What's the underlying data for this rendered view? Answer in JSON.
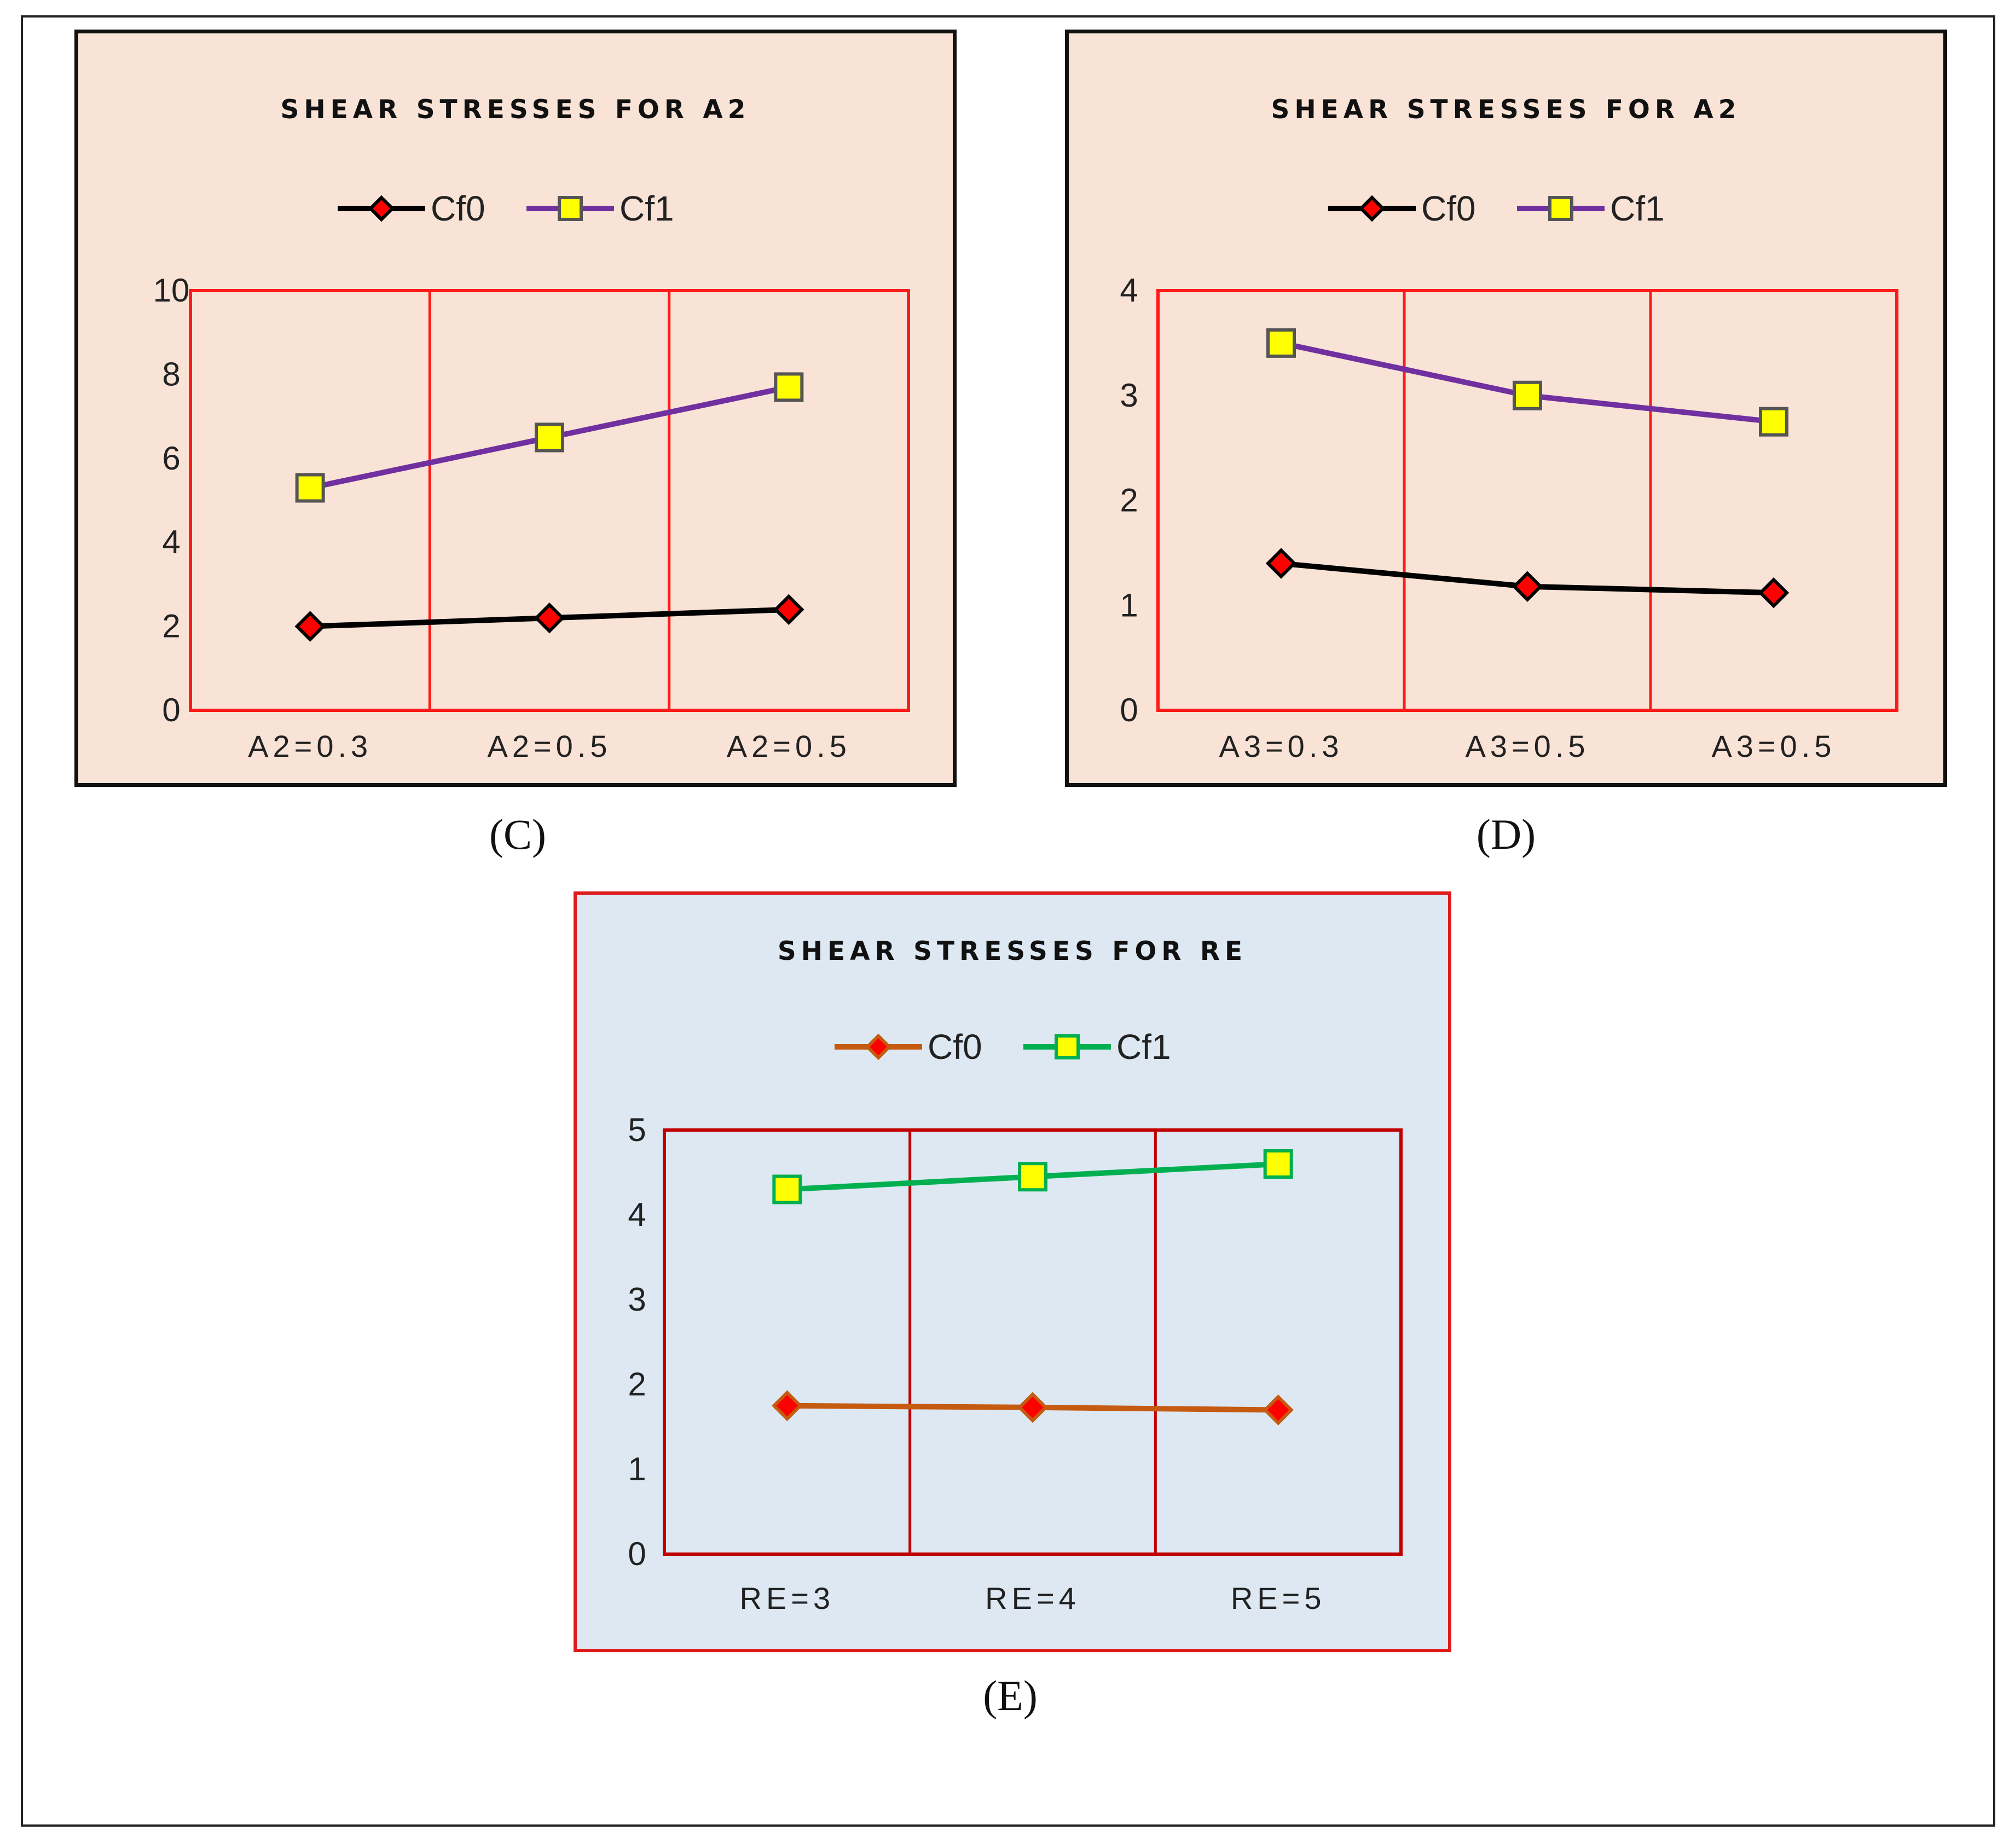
{
  "chart_data": [
    {
      "id": "C",
      "type": "line",
      "title": "SHEAR STRESSES FOR A2",
      "caption": "(C)",
      "categories": [
        "A2=0.3",
        "A2=0.5",
        "A2=0.5"
      ],
      "ylim": [
        0,
        10
      ],
      "yticks": [
        0,
        2,
        4,
        6,
        8,
        10
      ],
      "grid": true,
      "legend": "top-center",
      "plot_border_color": "#ff1a1a",
      "series": [
        {
          "name": "Cf0",
          "values": [
            2.0,
            2.2,
            2.4
          ],
          "color": "#000000",
          "marker": "diamond",
          "marker_fill": "#ff0000",
          "marker_stroke": "#000000"
        },
        {
          "name": "Cf1",
          "values": [
            5.3,
            6.5,
            7.7
          ],
          "color": "#7030a0",
          "marker": "square",
          "marker_fill": "#ffff00",
          "marker_stroke": "#555555"
        }
      ]
    },
    {
      "id": "D",
      "type": "line",
      "title": "SHEAR STRESSES FOR A2",
      "caption": "(D)",
      "categories": [
        "A3=0.3",
        "A3=0.5",
        "A3=0.5"
      ],
      "ylim": [
        0,
        4
      ],
      "yticks": [
        0,
        1,
        2,
        3,
        4
      ],
      "grid": true,
      "legend": "top-center",
      "plot_border_color": "#ff1a1a",
      "series": [
        {
          "name": "Cf0",
          "values": [
            1.4,
            1.18,
            1.12
          ],
          "color": "#000000",
          "marker": "diamond",
          "marker_fill": "#ff0000",
          "marker_stroke": "#000000"
        },
        {
          "name": "Cf1",
          "values": [
            3.5,
            3.0,
            2.75
          ],
          "color": "#7030a0",
          "marker": "square",
          "marker_fill": "#ffff00",
          "marker_stroke": "#555555"
        }
      ]
    },
    {
      "id": "E",
      "type": "line",
      "title": "SHEAR STRESSES FOR RE",
      "caption": "(E)",
      "categories": [
        "RE=3",
        "RE=4",
        "RE=5"
      ],
      "ylim": [
        0,
        5
      ],
      "yticks": [
        0,
        1,
        2,
        3,
        4,
        5
      ],
      "grid": true,
      "legend": "top-center",
      "plot_border_color": "#c00000",
      "series": [
        {
          "name": "Cf0",
          "values": [
            1.75,
            1.73,
            1.7
          ],
          "color": "#c55a11",
          "marker": "diamond",
          "marker_fill": "#ff0000",
          "marker_stroke": "#c55a11"
        },
        {
          "name": "Cf1",
          "values": [
            4.3,
            4.45,
            4.6
          ],
          "color": "#00b050",
          "marker": "square",
          "marker_fill": "#ffff00",
          "marker_stroke": "#00b050"
        }
      ]
    }
  ]
}
